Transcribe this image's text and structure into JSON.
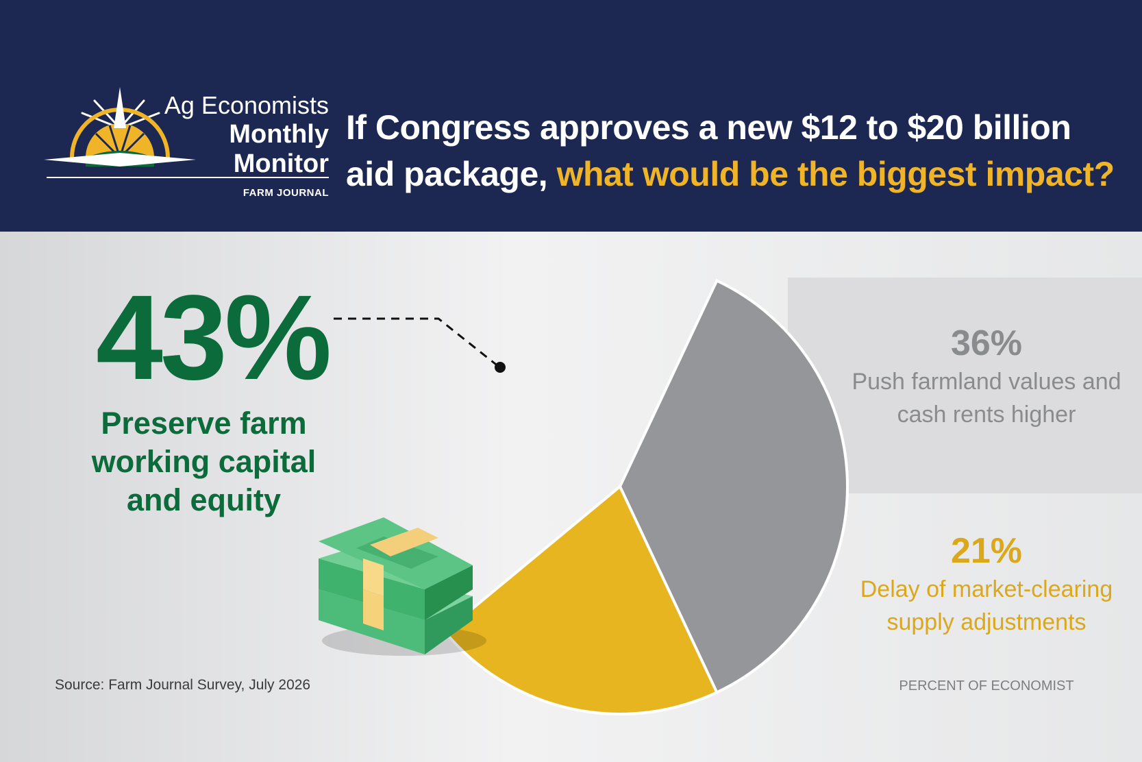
{
  "header": {
    "logo": {
      "line1": "Ag Economists",
      "line2": "Monthly",
      "line3": "Monitor",
      "brand": "FARM JOURNAL"
    },
    "question_part1": "If Congress approves a new $12 to $20 billion aid package,",
    "question_part2": "what would be the biggest impact?"
  },
  "colors": {
    "header_bg": "#1c2851",
    "green": "#0b6b3a",
    "gray": "#8a8b8e",
    "gold": "#dba81c",
    "highlight": "#f0b429"
  },
  "chart_data": {
    "type": "pie",
    "unit": "percent",
    "slices": [
      {
        "label": "Preserve farm working capital and equity",
        "value": 43,
        "display": "43%",
        "color": "#00704a"
      },
      {
        "label": "Push farmland values and cash rents higher",
        "value": 36,
        "display": "36%",
        "color": "#959699"
      },
      {
        "label": "Delay of market-clearing supply adjustments",
        "value": 21,
        "display": "21%",
        "color": "#e7b51f"
      }
    ],
    "note": "PERCENT OF ECONOMIST"
  },
  "callouts": {
    "big": {
      "pct": "43%",
      "label": "Preserve farm working capital and equity"
    },
    "gray": {
      "pct": "36%",
      "label": "Push farmland values and cash rents higher"
    },
    "gold": {
      "pct": "21%",
      "label": "Delay of market-clearing supply adjustments"
    }
  },
  "source": "Source: Farm Journal Survey, July 2026",
  "icons": [
    "compass-sun-logo-icon",
    "money-stack-icon"
  ]
}
